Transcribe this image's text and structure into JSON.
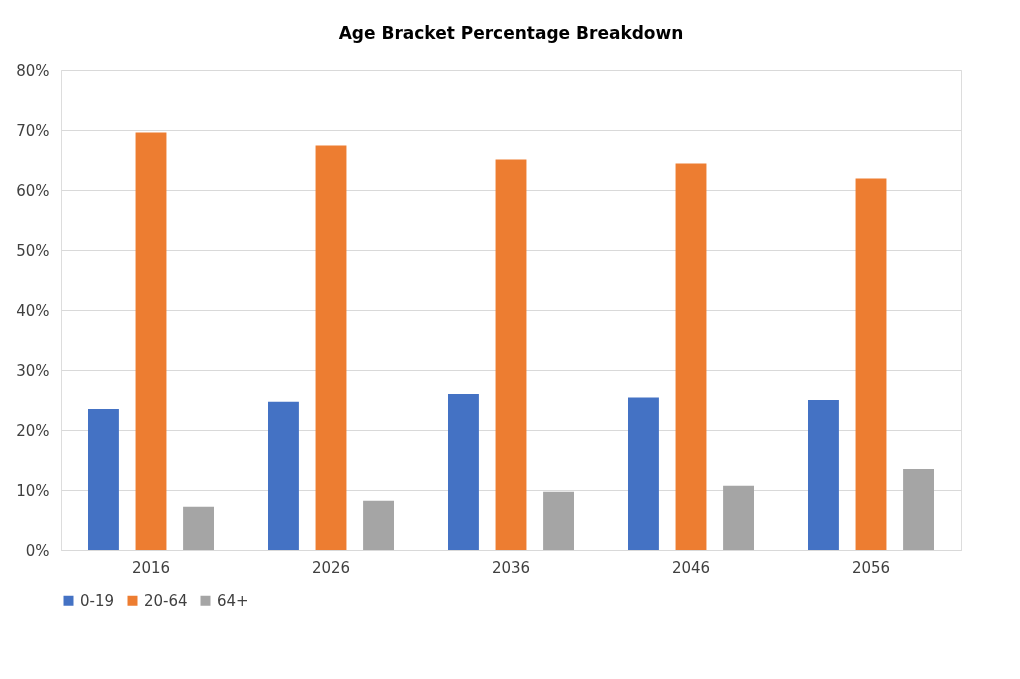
{
  "chart_data": {
    "type": "bar",
    "title": "Age Bracket Percentage Breakdown",
    "categories": [
      "2016",
      "2026",
      "2036",
      "2046",
      "2056"
    ],
    "series": [
      {
        "name": "0-19",
        "color": "#4472c4",
        "values": [
          23.5,
          24.7,
          26.0,
          25.4,
          25.0
        ]
      },
      {
        "name": "20-64",
        "color": "#ed7d31",
        "values": [
          69.6,
          67.4,
          65.1,
          64.4,
          61.9
        ]
      },
      {
        "name": "64+",
        "color": "#a5a5a5",
        "values": [
          7.2,
          8.2,
          9.7,
          10.7,
          13.5
        ]
      }
    ],
    "ylim": [
      0,
      80
    ],
    "yticks": [
      {
        "value": 0,
        "label": "0%"
      },
      {
        "value": 10,
        "label": "10%"
      },
      {
        "value": 20,
        "label": "20%"
      },
      {
        "value": 30,
        "label": "30%"
      },
      {
        "value": 40,
        "label": "40%"
      },
      {
        "value": 50,
        "label": "50%"
      },
      {
        "value": 60,
        "label": "60%"
      },
      {
        "value": 70,
        "label": "70%"
      },
      {
        "value": 80,
        "label": "80%"
      }
    ],
    "grid": "y",
    "legend": "bottom"
  }
}
